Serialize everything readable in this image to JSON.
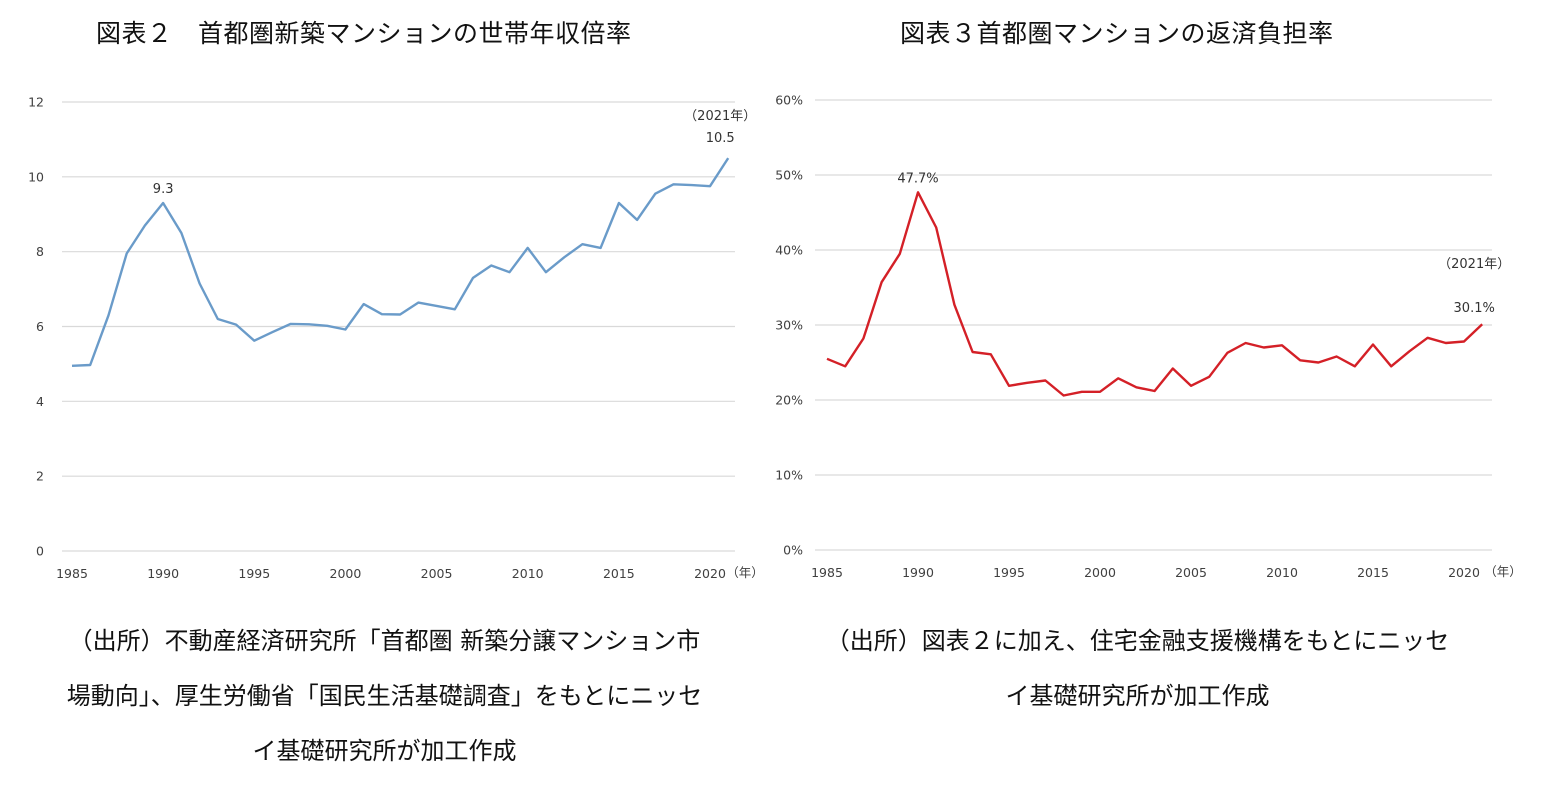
{
  "titles": {
    "left": "図表２　首都圏新築マンションの世帯年収倍率",
    "right": "図表３首都圏マンションの返済負担率"
  },
  "notes": {
    "left": [
      "（出所）不動産経済研究所「首都圏 新築分譲マンション市",
      "場動向」、厚生労働省「国民生活基礎調査」をもとにニッセ",
      "イ基礎研究所が加工作成"
    ],
    "right": [
      "（出所）図表２に加え、住宅金融支援機構をもとにニッセ",
      "イ基礎研究所が加工作成"
    ]
  },
  "chart_data": [
    {
      "type": "line",
      "title": "図表２　首都圏新築マンションの世帯年収倍率",
      "xlabel": "（年）",
      "ylabel": "",
      "x": [
        1985,
        1986,
        1987,
        1988,
        1989,
        1990,
        1991,
        1992,
        1993,
        1994,
        1995,
        1996,
        1997,
        1998,
        1999,
        2000,
        2001,
        2002,
        2003,
        2004,
        2005,
        2006,
        2007,
        2008,
        2009,
        2010,
        2011,
        2012,
        2013,
        2014,
        2015,
        2016,
        2017,
        2018,
        2019,
        2020,
        2021
      ],
      "series": [
        {
          "name": "世帯年収倍率",
          "color": "#6a9bc9",
          "values": [
            4.95,
            4.97,
            6.3,
            7.95,
            8.7,
            9.3,
            8.5,
            7.15,
            6.2,
            6.05,
            5.62,
            5.85,
            6.07,
            6.06,
            6.02,
            5.92,
            6.6,
            6.33,
            6.32,
            6.64,
            6.55,
            6.46,
            7.3,
            7.63,
            7.45,
            8.1,
            7.45,
            7.85,
            8.2,
            8.1,
            9.3,
            8.85,
            9.55,
            9.8,
            9.78,
            9.75,
            10.5
          ]
        }
      ],
      "ylim": [
        0,
        12
      ],
      "yticks": [
        0,
        2,
        4,
        6,
        8,
        10,
        12
      ],
      "ytick_labels": [
        "0",
        "2",
        "4",
        "6",
        "8",
        "10",
        "12"
      ],
      "xticks": [
        1985,
        1990,
        1995,
        2000,
        2005,
        2010,
        2015,
        2020
      ],
      "xtick_labels": [
        "1985",
        "1990",
        "1995",
        "2000",
        "2005",
        "2010",
        "2015",
        "2020"
      ],
      "grid": true,
      "annotations": [
        {
          "x": 1990,
          "text": "9.3"
        },
        {
          "x": 2021,
          "text": "10.5",
          "caption": "（2021年）"
        }
      ]
    },
    {
      "type": "line",
      "title": "図表３首都圏マンションの返済負担率",
      "xlabel": "（年）",
      "ylabel": "",
      "x": [
        1985,
        1986,
        1987,
        1988,
        1989,
        1990,
        1991,
        1992,
        1993,
        1994,
        1995,
        1996,
        1997,
        1998,
        1999,
        2000,
        2001,
        2002,
        2003,
        2004,
        2005,
        2006,
        2007,
        2008,
        2009,
        2010,
        2011,
        2012,
        2013,
        2014,
        2015,
        2016,
        2017,
        2018,
        2019,
        2020,
        2021
      ],
      "series": [
        {
          "name": "返済負担率",
          "color": "#d42027",
          "values": [
            25.5,
            24.5,
            28.2,
            35.7,
            39.5,
            47.7,
            43.0,
            32.7,
            26.4,
            26.1,
            21.9,
            22.3,
            22.6,
            20.6,
            21.1,
            21.1,
            22.9,
            21.7,
            21.2,
            24.2,
            21.9,
            23.1,
            26.3,
            27.6,
            27.0,
            27.3,
            25.3,
            25.0,
            25.8,
            24.5,
            27.4,
            24.5,
            26.5,
            28.3,
            27.6,
            27.8,
            30.1
          ]
        }
      ],
      "ylim": [
        0,
        60
      ],
      "yticks": [
        0,
        10,
        20,
        30,
        40,
        50,
        60
      ],
      "ytick_labels": [
        "0%",
        "10%",
        "20%",
        "30%",
        "40%",
        "50%",
        "60%"
      ],
      "xticks": [
        1985,
        1990,
        1995,
        2000,
        2005,
        2010,
        2015,
        2020
      ],
      "xtick_labels": [
        "1985",
        "1990",
        "1995",
        "2000",
        "2005",
        "2010",
        "2015",
        "2020"
      ],
      "grid": true,
      "annotations": [
        {
          "x": 1990,
          "text": "47.7%"
        },
        {
          "x": 2021,
          "text": "30.1%",
          "caption": "（2021年）"
        }
      ]
    }
  ]
}
